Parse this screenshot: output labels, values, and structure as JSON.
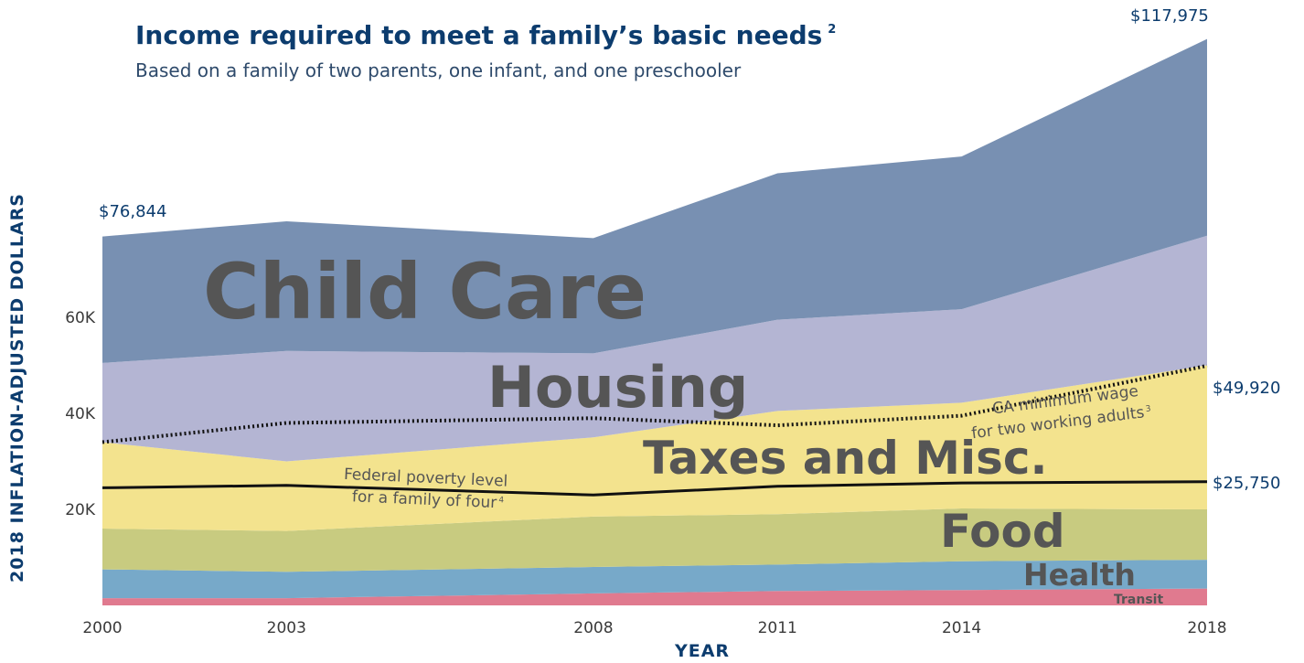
{
  "chart_data": {
    "type": "area",
    "title": "Income required to meet a family’s basic needs",
    "title_footnote": "2",
    "subtitle": "Based on a family of two parents, one infant, and one preschooler",
    "xlabel": "YEAR",
    "ylabel": "2018 INFLATION-ADJUSTED DOLLARS",
    "x": [
      "2000",
      "2003",
      "2008",
      "2011",
      "2014",
      "2018"
    ],
    "y_ticks": [
      {
        "value": 20000,
        "label": "20K"
      },
      {
        "value": 40000,
        "label": "40K"
      },
      {
        "value": 60000,
        "label": "60K"
      }
    ],
    "ylim": [
      0,
      120000
    ],
    "stacked": true,
    "grid": false,
    "legend": "direct labels on areas",
    "series": [
      {
        "name": "Transit",
        "color": "#e07a8f",
        "values": [
          1500,
          1500,
          2500,
          3000,
          3200,
          3500
        ]
      },
      {
        "name": "Health",
        "color": "#77a9c9",
        "values": [
          6000,
          5500,
          5500,
          5500,
          6000,
          6000
        ]
      },
      {
        "name": "Food",
        "color": "#c8cb80",
        "values": [
          8500,
          8500,
          10500,
          10500,
          11000,
          10500
        ]
      },
      {
        "name": "Taxes and Misc.",
        "color": "#f3e38e",
        "values": [
          18000,
          14500,
          16500,
          21500,
          22000,
          30000
        ]
      },
      {
        "name": "Housing",
        "color": "#b4b5d3",
        "values": [
          16500,
          23000,
          17500,
          19000,
          19500,
          27000
        ]
      },
      {
        "name": "Child Care",
        "color": "#7890b2",
        "values": [
          26344,
          27000,
          24000,
          30500,
          31800,
          40975
        ]
      }
    ],
    "lines": [
      {
        "name": "Federal poverty level for a family of four",
        "footnote": "4",
        "style": "solid",
        "color": "#111111",
        "values": [
          24500,
          25000,
          23000,
          24800,
          25500,
          25750
        ]
      },
      {
        "name": "CA minimum wage for two working adults",
        "footnote": "3",
        "style": "dotted",
        "color": "#111111",
        "values": [
          34000,
          38000,
          39000,
          37500,
          39500,
          49920
        ]
      }
    ],
    "annotations": {
      "total_2000": "$76,844",
      "total_2018": "$117,975",
      "min_wage_2018": "$49,920",
      "poverty_2018": "$25,750",
      "poverty_label_line1": "Federal poverty level",
      "poverty_label_line2": "for a family of four",
      "min_wage_label_line1": "CA minimum wage",
      "min_wage_label_line2": "for two working adults"
    }
  }
}
